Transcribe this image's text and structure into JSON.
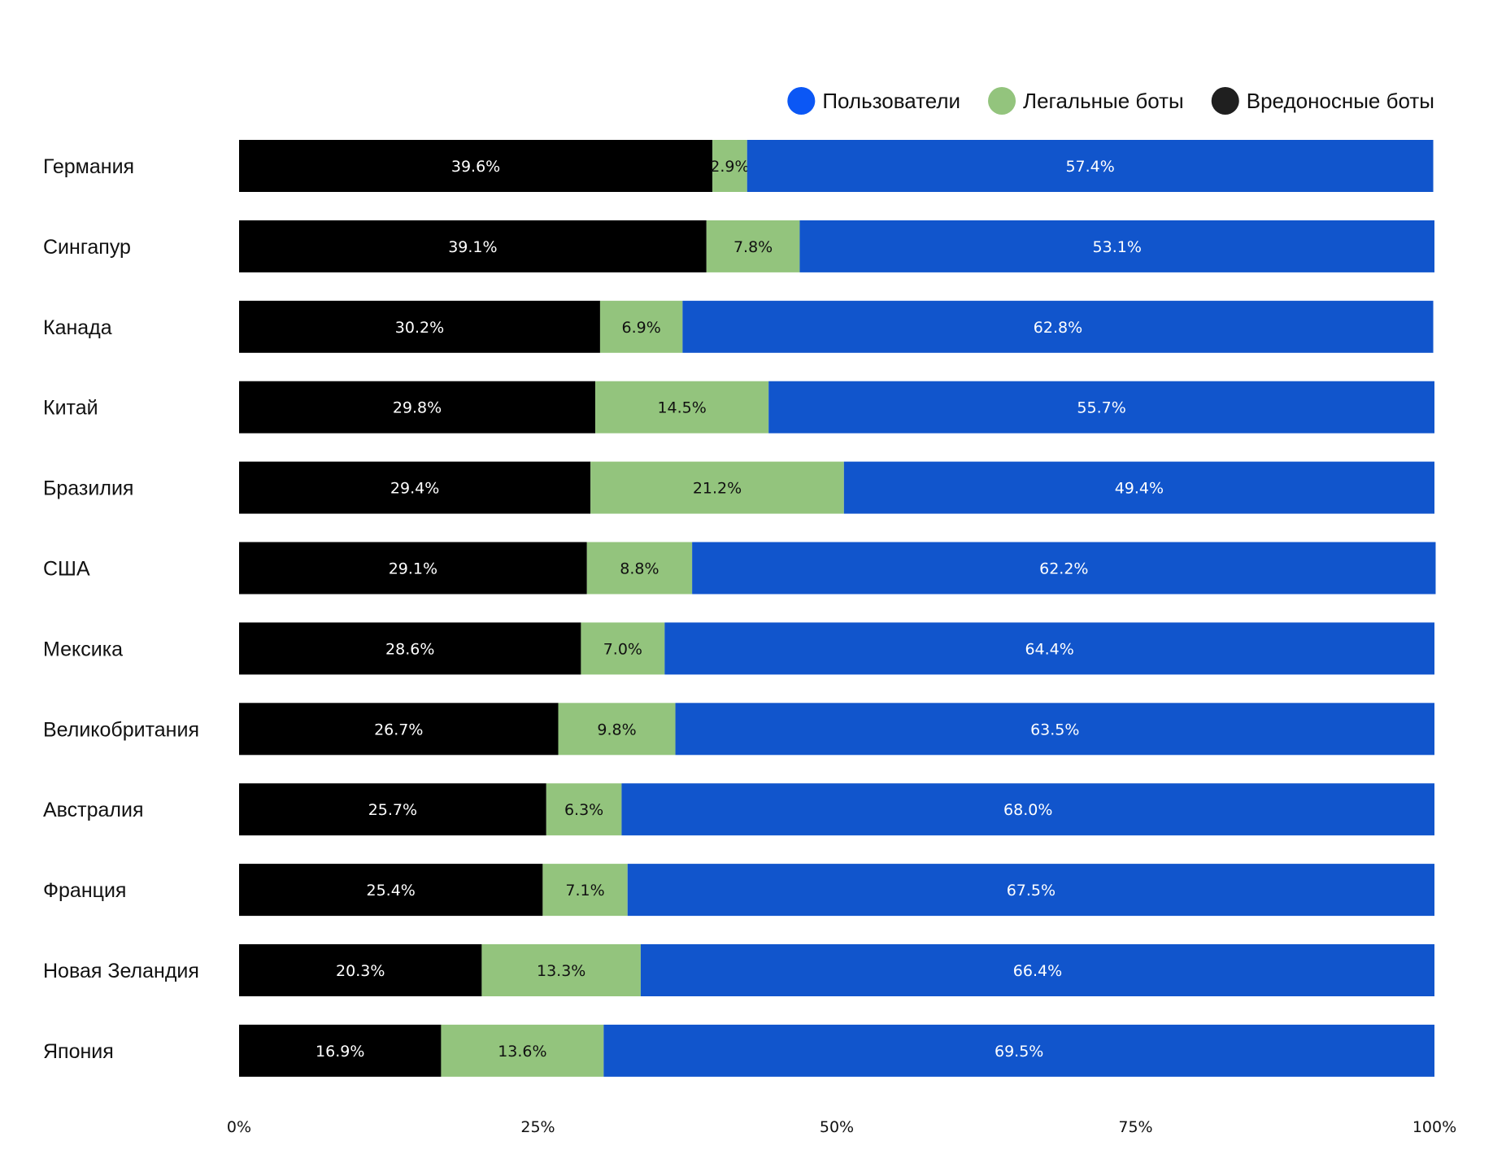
{
  "chart_data": {
    "type": "bar",
    "orientation": "horizontal",
    "stacked": true,
    "percent": true,
    "title": "",
    "xlabel": "",
    "ylabel": "",
    "xlim": [
      0,
      100
    ],
    "x_ticks": [
      "0%",
      "25%",
      "50%",
      "75%",
      "100%"
    ],
    "grid": false,
    "legend_position": "top-right",
    "categories": [
      "Германия",
      "Сингапур",
      "Канада",
      "Китай",
      "Бразилия",
      "США",
      "Мексика",
      "Великобритания",
      "Австралия",
      "Франция",
      "Новая Зеландия",
      "Япония"
    ],
    "series": [
      {
        "name": "Вредоносные боты",
        "color": "#000000",
        "label_color": "#ffffff",
        "values": [
          39.6,
          39.1,
          30.2,
          29.8,
          29.4,
          29.1,
          28.6,
          26.7,
          25.7,
          25.4,
          20.3,
          16.9
        ],
        "labels": [
          "39.6%",
          "39.1%",
          "30.2%",
          "29.8%",
          "29.4%",
          "29.1%",
          "28.6%",
          "26.7%",
          "25.7%",
          "25.4%",
          "20.3%",
          "16.9%"
        ]
      },
      {
        "name": "Легальные боты",
        "color": "#93c47d",
        "label_color": "#111111",
        "values": [
          2.9,
          7.8,
          6.9,
          14.5,
          21.2,
          8.8,
          7.0,
          9.8,
          6.3,
          7.1,
          13.3,
          13.6
        ],
        "labels": [
          "2.9%",
          "7.8%",
          "6.9%",
          "14.5%",
          "21.2%",
          "8.8%",
          "7.0%",
          "9.8%",
          "6.3%",
          "7.1%",
          "13.3%",
          "13.6%"
        ]
      },
      {
        "name": "Пользователи",
        "color": "#1155cc",
        "label_color": "#ffffff",
        "values": [
          57.4,
          53.1,
          62.8,
          55.7,
          49.4,
          62.2,
          64.4,
          63.5,
          68.0,
          67.5,
          66.4,
          69.5
        ],
        "labels": [
          "57.4%",
          "53.1%",
          "62.8%",
          "55.7%",
          "49.4%",
          "62.2%",
          "64.4%",
          "63.5%",
          "68.0%",
          "67.5%",
          "66.4%",
          "69.5%"
        ]
      }
    ],
    "legend": [
      {
        "name": "Пользователи",
        "color": "#0b57f5"
      },
      {
        "name": "Легальные боты",
        "color": "#93c47d"
      },
      {
        "name": "Вредоносные боты",
        "color": "#1f1f1f"
      }
    ]
  }
}
